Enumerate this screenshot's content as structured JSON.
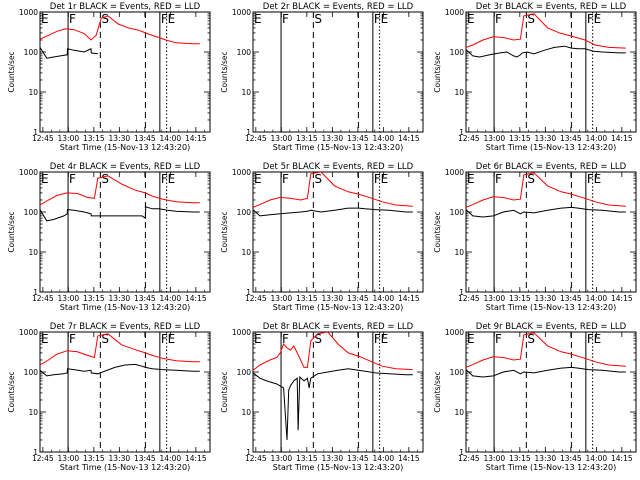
{
  "chart_data": {
    "type": "line",
    "scale": "log",
    "xlabel": "Start Time (15-Nov-13 12:43:20)",
    "ylabel": "Counts/sec",
    "x_ticks": [
      "12:45",
      "13:00",
      "13:15",
      "13:30",
      "13:45",
      "14:00",
      "14:15"
    ],
    "x_tick_minutes": [
      1.67,
      16.67,
      31.67,
      46.67,
      61.67,
      76.67,
      91.67
    ],
    "xlim": [
      0,
      100
    ],
    "y_ticks": [
      "1",
      "10",
      "100",
      "1000"
    ],
    "ylim": [
      1,
      1000
    ],
    "series_colors": {
      "events": "#000000",
      "lld": "#ff0000"
    },
    "markers": [
      {
        "label": "E",
        "t": 0,
        "style": "solid"
      },
      {
        "label": "F",
        "t": 16.5,
        "style": "solid"
      },
      {
        "label": "S",
        "t": 35.5,
        "style": "dashed"
      },
      {
        "label": "",
        "t": 62,
        "style": "dashed"
      },
      {
        "label": "F",
        "t": 70.5,
        "style": "solid"
      },
      {
        "label": "E",
        "t": 74.5,
        "style": "dotted"
      }
    ],
    "panels": [
      {
        "title": "Det 1r BLACK = Events, RED = LLD",
        "black": [
          [
            0,
            130
          ],
          [
            4,
            70
          ],
          [
            8,
            75
          ],
          [
            12,
            80
          ],
          [
            16,
            85
          ],
          [
            16.2,
            120
          ],
          [
            20,
            110
          ],
          [
            26,
            100
          ],
          [
            30,
            120
          ],
          [
            30.2,
            95
          ],
          [
            34,
            90
          ]
        ],
        "red": [
          [
            0,
            210
          ],
          [
            5,
            260
          ],
          [
            10,
            330
          ],
          [
            15,
            380
          ],
          [
            20,
            360
          ],
          [
            26,
            290
          ],
          [
            30,
            200
          ],
          [
            33,
            260
          ],
          [
            36,
            700
          ],
          [
            40,
            800
          ],
          [
            46,
            500
          ],
          [
            52,
            400
          ],
          [
            58,
            350
          ],
          [
            62,
            300
          ],
          [
            66,
            260
          ],
          [
            70,
            230
          ],
          [
            74,
            200
          ],
          [
            80,
            170
          ],
          [
            90,
            160
          ],
          [
            94,
            160
          ]
        ]
      },
      {
        "title": "Det 2r BLACK = Events, RED = LLD",
        "black": [],
        "red": []
      },
      {
        "title": "Det 3r BLACK = Events, RED = LLD",
        "black": [
          [
            0,
            115
          ],
          [
            4,
            80
          ],
          [
            8,
            75
          ],
          [
            14,
            85
          ],
          [
            20,
            95
          ],
          [
            24,
            100
          ],
          [
            28,
            80
          ],
          [
            30,
            75
          ],
          [
            32,
            85
          ],
          [
            33,
            95
          ],
          [
            36,
            100
          ],
          [
            40,
            90
          ],
          [
            46,
            110
          ],
          [
            52,
            130
          ],
          [
            58,
            140
          ],
          [
            62,
            125
          ],
          [
            66,
            120
          ],
          [
            70,
            120
          ],
          [
            75,
            105
          ],
          [
            80,
            100
          ],
          [
            90,
            95
          ],
          [
            94,
            95
          ]
        ],
        "red": [
          [
            0,
            130
          ],
          [
            4,
            150
          ],
          [
            10,
            200
          ],
          [
            16,
            240
          ],
          [
            22,
            230
          ],
          [
            28,
            200
          ],
          [
            32,
            210
          ],
          [
            34,
            800
          ],
          [
            40,
            900
          ],
          [
            48,
            400
          ],
          [
            55,
            300
          ],
          [
            62,
            250
          ],
          [
            70,
            200
          ],
          [
            76,
            150
          ],
          [
            84,
            130
          ],
          [
            94,
            125
          ]
        ]
      },
      {
        "title": "Det 4r BLACK = Events, RED = LLD",
        "black": [
          [
            0,
            115
          ],
          [
            4,
            60
          ],
          [
            8,
            65
          ],
          [
            14,
            80
          ],
          [
            16,
            90
          ],
          [
            16.2,
            115
          ],
          [
            20,
            110
          ],
          [
            26,
            100
          ],
          [
            30,
            90
          ],
          [
            30.2,
            80
          ],
          [
            34,
            80
          ],
          [
            60,
            80
          ],
          [
            62,
            70
          ],
          [
            62.2,
            135
          ],
          [
            66,
            120
          ],
          [
            70,
            120
          ],
          [
            75,
            110
          ],
          [
            80,
            105
          ],
          [
            90,
            100
          ],
          [
            94,
            100
          ]
        ],
        "red": [
          [
            0,
            150
          ],
          [
            5,
            200
          ],
          [
            10,
            260
          ],
          [
            16,
            300
          ],
          [
            22,
            290
          ],
          [
            28,
            230
          ],
          [
            32,
            220
          ],
          [
            34,
            700
          ],
          [
            40,
            800
          ],
          [
            48,
            500
          ],
          [
            56,
            350
          ],
          [
            62,
            300
          ],
          [
            66,
            250
          ],
          [
            72,
            210
          ],
          [
            80,
            180
          ],
          [
            90,
            170
          ],
          [
            94,
            170
          ]
        ]
      },
      {
        "title": "Det 5r BLACK = Events, RED = LLD",
        "black": [
          [
            0,
            115
          ],
          [
            4,
            80
          ],
          [
            10,
            85
          ],
          [
            16,
            90
          ],
          [
            22,
            95
          ],
          [
            28,
            100
          ],
          [
            32,
            105
          ],
          [
            34,
            110
          ],
          [
            40,
            100
          ],
          [
            48,
            110
          ],
          [
            56,
            125
          ],
          [
            62,
            125
          ],
          [
            66,
            120
          ],
          [
            72,
            115
          ],
          [
            80,
            110
          ],
          [
            90,
            100
          ],
          [
            94,
            100
          ]
        ],
        "red": [
          [
            0,
            130
          ],
          [
            5,
            160
          ],
          [
            10,
            200
          ],
          [
            16,
            230
          ],
          [
            22,
            220
          ],
          [
            28,
            200
          ],
          [
            32,
            220
          ],
          [
            34,
            900
          ],
          [
            40,
            1000
          ],
          [
            48,
            450
          ],
          [
            56,
            320
          ],
          [
            62,
            280
          ],
          [
            70,
            220
          ],
          [
            76,
            180
          ],
          [
            84,
            150
          ],
          [
            94,
            140
          ]
        ]
      },
      {
        "title": "Det 6r BLACK = Events, RED = LLD",
        "black": [
          [
            0,
            115
          ],
          [
            4,
            80
          ],
          [
            10,
            75
          ],
          [
            16,
            80
          ],
          [
            22,
            100
          ],
          [
            28,
            110
          ],
          [
            32,
            90
          ],
          [
            34,
            100
          ],
          [
            40,
            95
          ],
          [
            48,
            110
          ],
          [
            56,
            125
          ],
          [
            62,
            130
          ],
          [
            66,
            125
          ],
          [
            72,
            115
          ],
          [
            80,
            110
          ],
          [
            90,
            100
          ],
          [
            94,
            100
          ]
        ],
        "red": [
          [
            0,
            130
          ],
          [
            5,
            160
          ],
          [
            10,
            200
          ],
          [
            16,
            240
          ],
          [
            22,
            230
          ],
          [
            28,
            200
          ],
          [
            32,
            210
          ],
          [
            34,
            850
          ],
          [
            40,
            950
          ],
          [
            48,
            450
          ],
          [
            56,
            320
          ],
          [
            62,
            280
          ],
          [
            70,
            220
          ],
          [
            76,
            180
          ],
          [
            84,
            150
          ],
          [
            94,
            140
          ]
        ]
      },
      {
        "title": "Det 7r BLACK = Events, RED = LLD",
        "black": [
          [
            0,
            110
          ],
          [
            4,
            80
          ],
          [
            8,
            85
          ],
          [
            14,
            90
          ],
          [
            16,
            95
          ],
          [
            16.2,
            120
          ],
          [
            20,
            115
          ],
          [
            26,
            105
          ],
          [
            30,
            110
          ],
          [
            30.2,
            95
          ],
          [
            34,
            90
          ],
          [
            44,
            130
          ],
          [
            50,
            150
          ],
          [
            56,
            155
          ],
          [
            60,
            140
          ],
          [
            62,
            130
          ],
          [
            66,
            120
          ],
          [
            72,
            115
          ],
          [
            80,
            110
          ],
          [
            90,
            105
          ],
          [
            94,
            105
          ]
        ],
        "red": [
          [
            0,
            150
          ],
          [
            5,
            200
          ],
          [
            10,
            280
          ],
          [
            16,
            340
          ],
          [
            22,
            320
          ],
          [
            28,
            260
          ],
          [
            32,
            230
          ],
          [
            34,
            800
          ],
          [
            40,
            900
          ],
          [
            48,
            480
          ],
          [
            56,
            360
          ],
          [
            62,
            300
          ],
          [
            66,
            260
          ],
          [
            72,
            220
          ],
          [
            80,
            190
          ],
          [
            90,
            180
          ],
          [
            94,
            180
          ]
        ]
      },
      {
        "title": "Det 8r BLACK = Events, RED = LLD",
        "black": [
          [
            0,
            95
          ],
          [
            4,
            70
          ],
          [
            8,
            60
          ],
          [
            14,
            50
          ],
          [
            18,
            40
          ],
          [
            20,
            2
          ],
          [
            21,
            35
          ],
          [
            22,
            45
          ],
          [
            24,
            60
          ],
          [
            26,
            70
          ],
          [
            26.5,
            3.5
          ],
          [
            27.5,
            75
          ],
          [
            30,
            60
          ],
          [
            32,
            70
          ],
          [
            33,
            40
          ],
          [
            34,
            70
          ],
          [
            38,
            90
          ],
          [
            44,
            100
          ],
          [
            50,
            110
          ],
          [
            56,
            120
          ],
          [
            62,
            110
          ],
          [
            66,
            105
          ],
          [
            72,
            95
          ],
          [
            80,
            90
          ],
          [
            90,
            85
          ],
          [
            94,
            85
          ]
        ],
        "red": [
          [
            0,
            110
          ],
          [
            4,
            150
          ],
          [
            10,
            200
          ],
          [
            14,
            230
          ],
          [
            16,
            300
          ],
          [
            18,
            500
          ],
          [
            20,
            400
          ],
          [
            22,
            350
          ],
          [
            24,
            450
          ],
          [
            26,
            300
          ],
          [
            28,
            200
          ],
          [
            30,
            130
          ],
          [
            32,
            130
          ],
          [
            34,
            600
          ],
          [
            38,
            900
          ],
          [
            44,
            1000
          ],
          [
            50,
            500
          ],
          [
            56,
            300
          ],
          [
            62,
            250
          ],
          [
            70,
            180
          ],
          [
            76,
            140
          ],
          [
            84,
            120
          ],
          [
            94,
            115
          ]
        ]
      },
      {
        "title": "Det 9r BLACK = Events, RED = LLD",
        "black": [
          [
            0,
            115
          ],
          [
            4,
            80
          ],
          [
            10,
            75
          ],
          [
            16,
            80
          ],
          [
            22,
            100
          ],
          [
            28,
            110
          ],
          [
            32,
            90
          ],
          [
            34,
            100
          ],
          [
            40,
            95
          ],
          [
            48,
            110
          ],
          [
            56,
            125
          ],
          [
            62,
            130
          ],
          [
            66,
            125
          ],
          [
            72,
            115
          ],
          [
            80,
            110
          ],
          [
            90,
            100
          ],
          [
            94,
            100
          ]
        ],
        "red": [
          [
            0,
            130
          ],
          [
            5,
            160
          ],
          [
            10,
            200
          ],
          [
            16,
            240
          ],
          [
            22,
            230
          ],
          [
            28,
            200
          ],
          [
            32,
            210
          ],
          [
            34,
            850
          ],
          [
            40,
            950
          ],
          [
            48,
            450
          ],
          [
            56,
            320
          ],
          [
            62,
            280
          ],
          [
            70,
            220
          ],
          [
            76,
            180
          ],
          [
            84,
            150
          ],
          [
            94,
            140
          ]
        ]
      }
    ]
  }
}
